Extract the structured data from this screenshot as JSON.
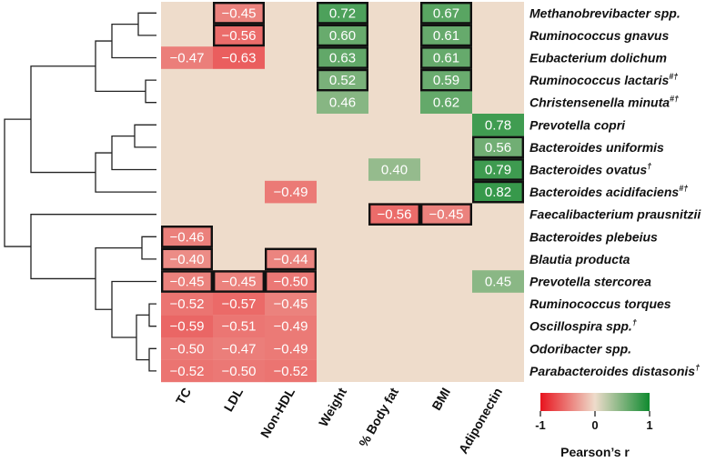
{
  "chart_data": {
    "type": "heatmap",
    "title": "",
    "columns": [
      "TC",
      "LDL",
      "Non-HDL",
      "Weight",
      "% Body fat",
      "BMI",
      "Adiponectin"
    ],
    "rows": [
      {
        "name": "Methanobrevibacter spp.",
        "sup": ""
      },
      {
        "name": "Ruminococcus gnavus",
        "sup": ""
      },
      {
        "name": "Eubacterium dolichum",
        "sup": ""
      },
      {
        "name": "Ruminococcus lactaris",
        "sup": "#†"
      },
      {
        "name": "Christensenella minuta",
        "sup": "#†"
      },
      {
        "name": "Prevotella copri",
        "sup": ""
      },
      {
        "name": "Bacteroides uniformis",
        "sup": ""
      },
      {
        "name": "Bacteroides ovatus",
        "sup": "†"
      },
      {
        "name": "Bacteroides acidifaciens",
        "sup": "#†"
      },
      {
        "name": "Faecalibacterium prausnitzii",
        "sup": ""
      },
      {
        "name": "Bacteroides plebeius",
        "sup": ""
      },
      {
        "name": "Blautia producta",
        "sup": ""
      },
      {
        "name": "Prevotella stercorea",
        "sup": ""
      },
      {
        "name": "Ruminococcus torques",
        "sup": ""
      },
      {
        "name": "Oscillospira spp.",
        "sup": "†"
      },
      {
        "name": "Odoribacter spp.",
        "sup": ""
      },
      {
        "name": "Parabacteroides distasonis",
        "sup": "†"
      }
    ],
    "values": [
      [
        null,
        -0.45,
        null,
        0.72,
        null,
        0.67,
        null
      ],
      [
        null,
        -0.56,
        null,
        0.6,
        null,
        0.61,
        null
      ],
      [
        -0.47,
        -0.63,
        null,
        0.63,
        null,
        0.61,
        null
      ],
      [
        null,
        null,
        null,
        0.52,
        null,
        0.59,
        null
      ],
      [
        null,
        null,
        null,
        0.46,
        null,
        0.62,
        null
      ],
      [
        null,
        null,
        null,
        null,
        null,
        null,
        0.78
      ],
      [
        null,
        null,
        null,
        null,
        null,
        null,
        0.56
      ],
      [
        null,
        null,
        null,
        null,
        0.4,
        null,
        0.79
      ],
      [
        null,
        null,
        -0.49,
        null,
        null,
        null,
        0.82
      ],
      [
        null,
        null,
        null,
        null,
        -0.56,
        -0.45,
        null
      ],
      [
        -0.46,
        null,
        null,
        null,
        null,
        null,
        null
      ],
      [
        -0.4,
        null,
        -0.44,
        null,
        null,
        null,
        null
      ],
      [
        -0.45,
        -0.45,
        -0.5,
        null,
        null,
        null,
        0.45
      ],
      [
        -0.52,
        -0.57,
        -0.45,
        null,
        null,
        null,
        null
      ],
      [
        -0.59,
        -0.51,
        -0.49,
        null,
        null,
        null,
        null
      ],
      [
        -0.5,
        -0.47,
        -0.49,
        null,
        null,
        null,
        null
      ],
      [
        -0.52,
        -0.5,
        -0.52,
        null,
        null,
        null,
        null
      ]
    ],
    "boxed": [
      [
        0,
        1
      ],
      [
        0,
        3
      ],
      [
        0,
        5
      ],
      [
        1,
        1
      ],
      [
        1,
        3
      ],
      [
        1,
        5
      ],
      [
        2,
        3
      ],
      [
        2,
        5
      ],
      [
        3,
        3
      ],
      [
        3,
        5
      ],
      [
        6,
        6
      ],
      [
        7,
        6
      ],
      [
        8,
        6
      ],
      [
        9,
        4
      ],
      [
        9,
        5
      ],
      [
        10,
        0
      ],
      [
        11,
        0
      ],
      [
        11,
        2
      ],
      [
        12,
        0
      ],
      [
        12,
        1
      ],
      [
        12,
        2
      ]
    ],
    "value_format": "two-decimals",
    "colorbar": {
      "title": "Pearson’s r",
      "min": -1,
      "max": 1,
      "ticks": [
        -1,
        0,
        1
      ],
      "tick_labels": [
        "-1",
        "0",
        "1"
      ],
      "low_color": "#e8141e",
      "mid_color": "#eedccb",
      "high_color": "#0f8a2f"
    },
    "background_color": "#eedccb",
    "dendrogram": "left"
  }
}
